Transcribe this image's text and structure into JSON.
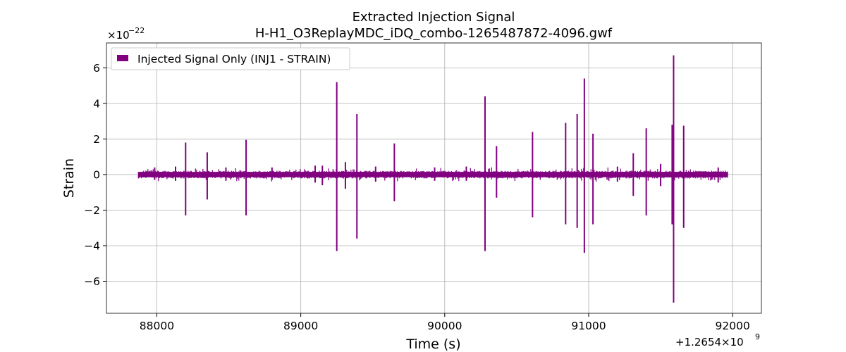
{
  "chart_data": {
    "type": "line",
    "title": "Extracted Injection Signal",
    "subtitle": "H-H1_O3ReplayMDC_iDQ_combo-1265487872-4096.gwf",
    "xlabel": "Time (s)",
    "ylabel": "Strain",
    "x_offset_label": "+1.2654×10",
    "x_offset_exponent": "9",
    "y_scale_label": "×10",
    "y_scale_exponent": "−22",
    "x_ticks": [
      88000,
      89000,
      90000,
      91000,
      92000
    ],
    "x_tick_labels": [
      "88000",
      "89000",
      "90000",
      "91000",
      "92000"
    ],
    "y_ticks": [
      -6,
      -4,
      -2,
      0,
      2,
      4,
      6
    ],
    "y_tick_labels": [
      "−6",
      "−4",
      "−2",
      "0",
      "2",
      "4",
      "6"
    ],
    "xlim": [
      87650,
      92200
    ],
    "ylim": [
      -7.8,
      7.4
    ],
    "grid": true,
    "legend_position": "top-left",
    "color": "#800080",
    "series": [
      {
        "name": "Injected Signal Only (INJ1 - STRAIN)",
        "x_range": [
          87872,
          91968
        ],
        "noise_band": [
          -0.15,
          0.15
        ],
        "spikes": [
          {
            "x": 87985,
            "max": 0.4,
            "min": -0.3
          },
          {
            "x": 88130,
            "max": 0.45,
            "min": -0.35
          },
          {
            "x": 88200,
            "max": 1.8,
            "min": -2.3
          },
          {
            "x": 88350,
            "max": 1.25,
            "min": -1.4
          },
          {
            "x": 88480,
            "max": 0.4,
            "min": -0.35
          },
          {
            "x": 88620,
            "max": 1.95,
            "min": -2.3
          },
          {
            "x": 88800,
            "max": 0.4,
            "min": -0.3
          },
          {
            "x": 89100,
            "max": 0.5,
            "min": -0.45
          },
          {
            "x": 89150,
            "max": 0.5,
            "min": -0.6
          },
          {
            "x": 89250,
            "max": 5.2,
            "min": -4.3
          },
          {
            "x": 89310,
            "max": 0.7,
            "min": -0.8
          },
          {
            "x": 89390,
            "max": 3.4,
            "min": -3.6
          },
          {
            "x": 89520,
            "max": 0.45,
            "min": -0.4
          },
          {
            "x": 89650,
            "max": 1.75,
            "min": -1.5
          },
          {
            "x": 89930,
            "max": 0.4,
            "min": -0.35
          },
          {
            "x": 90150,
            "max": 0.45,
            "min": -0.35
          },
          {
            "x": 90280,
            "max": 4.4,
            "min": -4.3
          },
          {
            "x": 90360,
            "max": 1.6,
            "min": -1.3
          },
          {
            "x": 90610,
            "max": 2.4,
            "min": -2.4
          },
          {
            "x": 90840,
            "max": 2.9,
            "min": -2.8
          },
          {
            "x": 90920,
            "max": 3.4,
            "min": -3.0
          },
          {
            "x": 90970,
            "max": 5.4,
            "min": -4.4
          },
          {
            "x": 91030,
            "max": 2.3,
            "min": -2.8
          },
          {
            "x": 91200,
            "max": 0.45,
            "min": -0.4
          },
          {
            "x": 91310,
            "max": 1.2,
            "min": -1.2
          },
          {
            "x": 91400,
            "max": 2.6,
            "min": -2.3
          },
          {
            "x": 91500,
            "max": 0.6,
            "min": -0.65
          },
          {
            "x": 91580,
            "max": 2.8,
            "min": -2.8
          },
          {
            "x": 91590,
            "max": 6.7,
            "min": -7.2
          },
          {
            "x": 91660,
            "max": 2.75,
            "min": -3.0
          },
          {
            "x": 91900,
            "max": 0.4,
            "min": -0.45
          }
        ]
      }
    ]
  }
}
